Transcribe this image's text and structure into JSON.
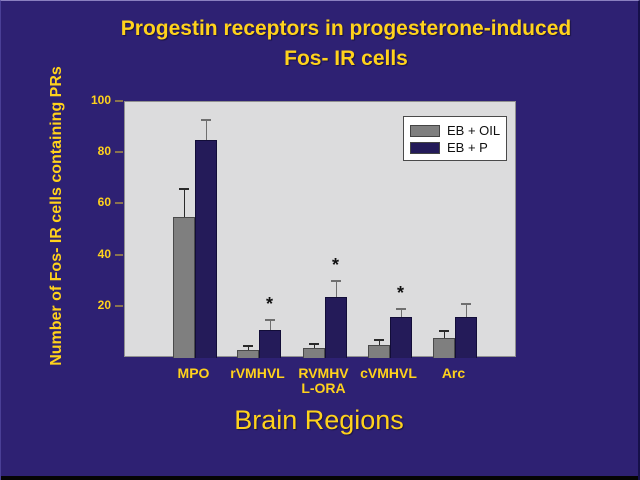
{
  "page": {
    "background_color": "#2e2173",
    "accent_text_color": "#ffd21c"
  },
  "chart_data": {
    "type": "bar",
    "title": "Progestin receptors in progesterone-induced Fos- IR cells",
    "title_lines": [
      "Progestin receptors in progesterone-induced",
      "Fos- IR cells"
    ],
    "xlabel": "Brain Regions",
    "ylabel": "Number of Fos- IR cells containing PRs",
    "categories": [
      "MPO",
      "rVMHVL",
      "RVMHVL-ORA",
      "cVMHVL",
      "Arc"
    ],
    "category_display": [
      [
        "MPO"
      ],
      [
        "rVMHVL"
      ],
      [
        "RVMHV",
        "L-ORA"
      ],
      [
        "cVMHVL"
      ],
      [
        "Arc"
      ]
    ],
    "series": [
      {
        "name": "EB + OIL",
        "color": "#7f7f7f",
        "border_color": "#4a4a4a",
        "error_color": "#2a2a2a",
        "values": [
          55,
          3,
          4,
          5,
          8
        ],
        "errors": [
          11,
          1.5,
          1.5,
          2,
          2.5
        ]
      },
      {
        "name": "EB + P",
        "color": "#241b59",
        "border_color": "#120d38",
        "error_color": "#6f6f6f",
        "values": [
          85,
          11,
          24,
          16,
          16
        ],
        "errors": [
          8,
          4,
          6,
          3,
          5
        ]
      }
    ],
    "significance_marker": "*",
    "significant_groups": [
      false,
      true,
      true,
      true,
      false
    ],
    "ylim": [
      0,
      100
    ],
    "yticks": [
      20,
      40,
      60,
      80,
      100
    ],
    "legend_position": "top-right",
    "grid": false,
    "plot_background": "#dcdcdd",
    "tick_color": "#8a7450"
  }
}
